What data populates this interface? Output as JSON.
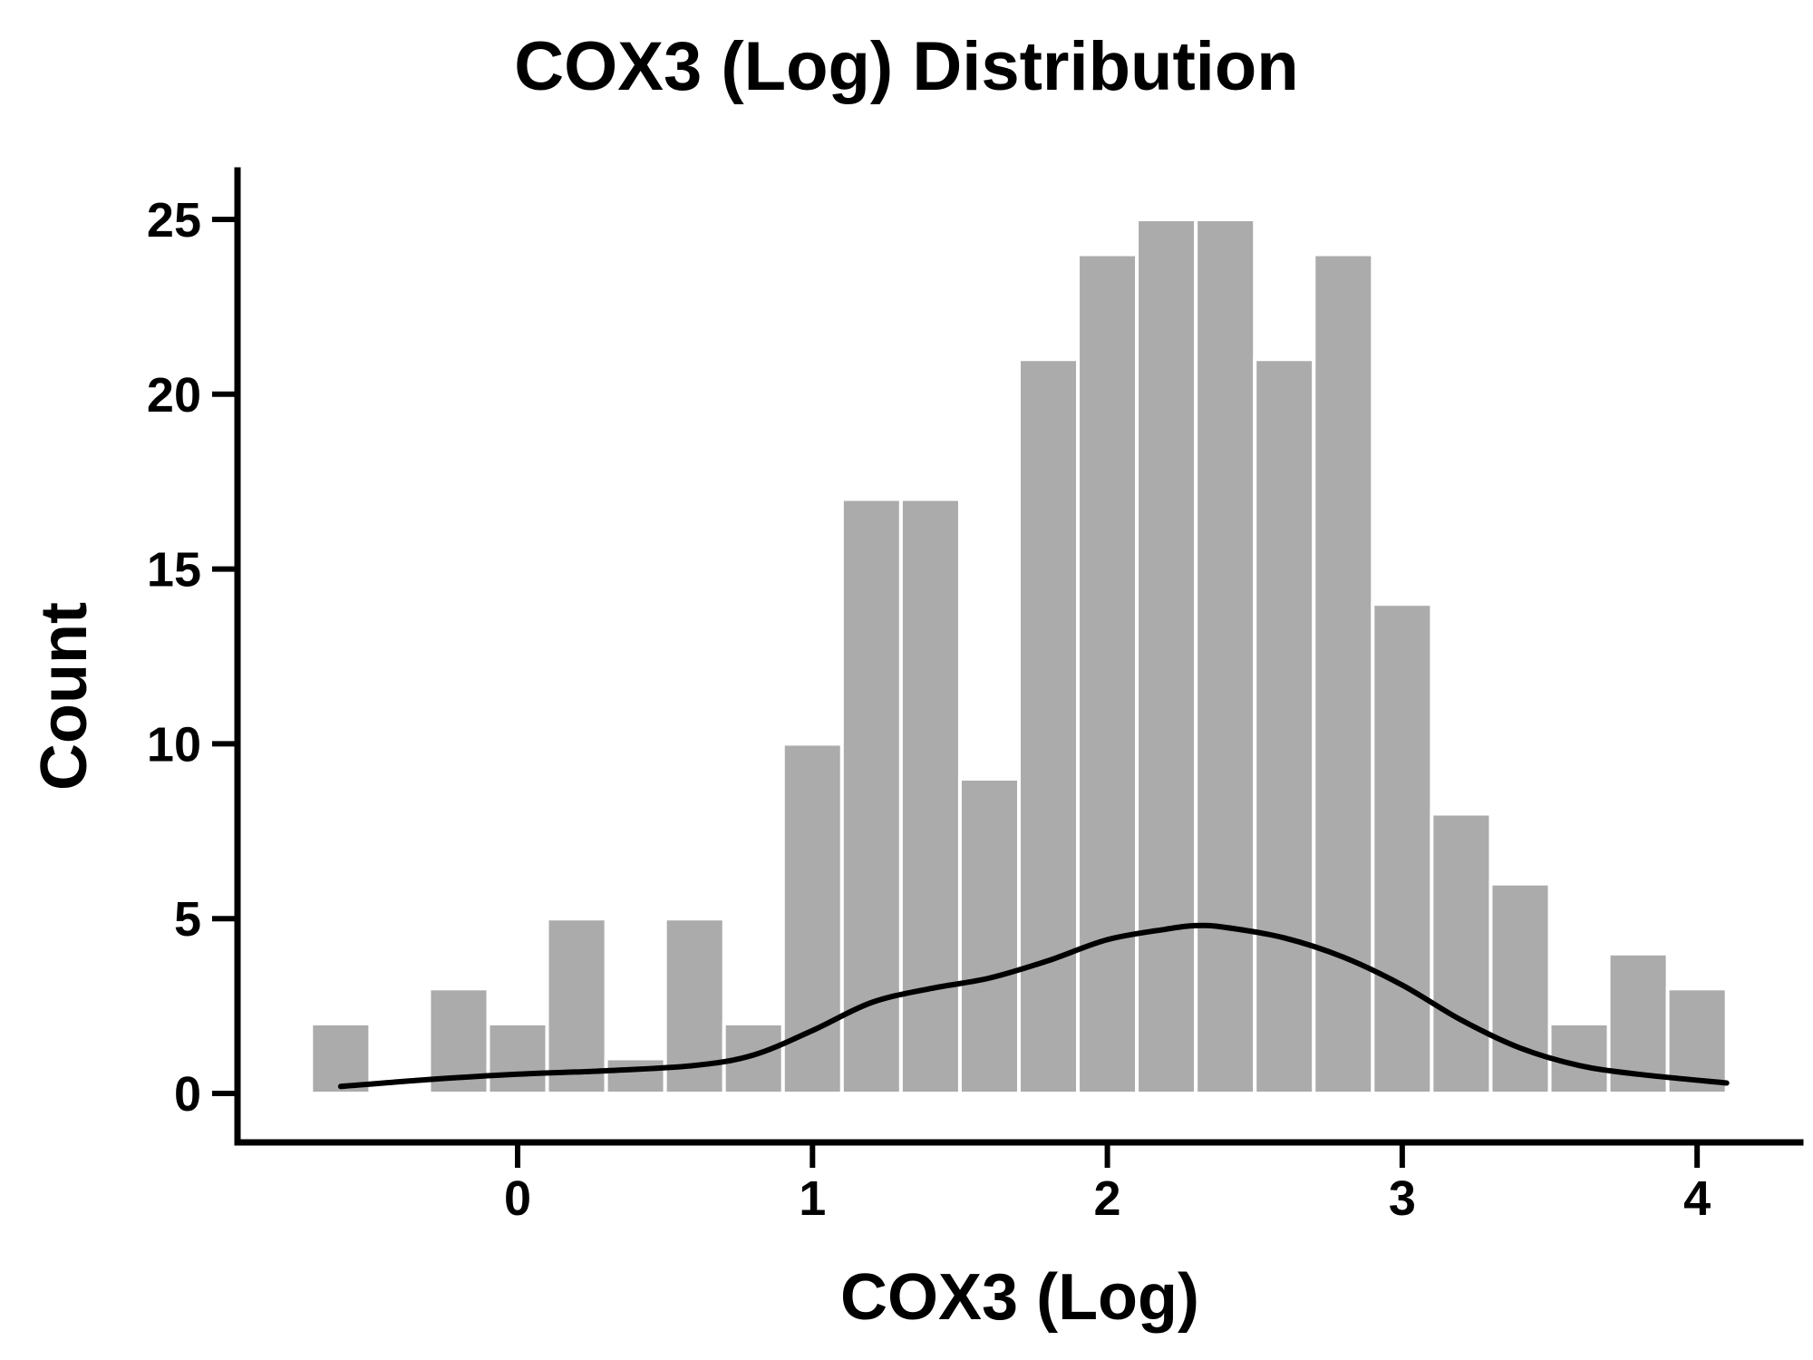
{
  "chart_data": {
    "type": "bar",
    "title": "COX3 (Log) Distribution",
    "xlabel": "COX3 (Log)",
    "ylabel": "Count",
    "xlim": [
      -0.95,
      4.35
    ],
    "ylim": [
      -1.4,
      26.4
    ],
    "x_ticks": [
      0,
      1,
      2,
      3,
      4
    ],
    "y_ticks": [
      0,
      5,
      10,
      15,
      20,
      25
    ],
    "bins": [
      {
        "start": -0.7,
        "end": -0.5,
        "count": 2
      },
      {
        "start": -0.5,
        "end": -0.3,
        "count": 0
      },
      {
        "start": -0.3,
        "end": -0.1,
        "count": 3
      },
      {
        "start": -0.1,
        "end": 0.1,
        "count": 2
      },
      {
        "start": 0.1,
        "end": 0.3,
        "count": 5
      },
      {
        "start": 0.3,
        "end": 0.5,
        "count": 1
      },
      {
        "start": 0.5,
        "end": 0.7,
        "count": 5
      },
      {
        "start": 0.7,
        "end": 0.9,
        "count": 2
      },
      {
        "start": 0.9,
        "end": 1.1,
        "count": 10
      },
      {
        "start": 1.1,
        "end": 1.3,
        "count": 17
      },
      {
        "start": 1.3,
        "end": 1.5,
        "count": 17
      },
      {
        "start": 1.5,
        "end": 1.7,
        "count": 9
      },
      {
        "start": 1.7,
        "end": 1.9,
        "count": 21
      },
      {
        "start": 1.9,
        "end": 2.1,
        "count": 24
      },
      {
        "start": 2.1,
        "end": 2.3,
        "count": 25
      },
      {
        "start": 2.3,
        "end": 2.5,
        "count": 25
      },
      {
        "start": 2.5,
        "end": 2.7,
        "count": 21
      },
      {
        "start": 2.7,
        "end": 2.9,
        "count": 24
      },
      {
        "start": 2.9,
        "end": 3.1,
        "count": 14
      },
      {
        "start": 3.1,
        "end": 3.3,
        "count": 8
      },
      {
        "start": 3.3,
        "end": 3.5,
        "count": 6
      },
      {
        "start": 3.5,
        "end": 3.7,
        "count": 2
      },
      {
        "start": 3.7,
        "end": 3.9,
        "count": 4
      },
      {
        "start": 3.9,
        "end": 4.1,
        "count": 3
      }
    ],
    "density_curve": {
      "x": [
        -0.6,
        -0.3,
        0.0,
        0.3,
        0.6,
        0.8,
        1.0,
        1.2,
        1.4,
        1.6,
        1.8,
        2.0,
        2.2,
        2.3,
        2.4,
        2.6,
        2.8,
        3.0,
        3.2,
        3.4,
        3.6,
        3.8,
        4.1
      ],
      "y": [
        0.2,
        0.4,
        0.55,
        0.65,
        0.8,
        1.1,
        1.8,
        2.6,
        3.0,
        3.3,
        3.8,
        4.4,
        4.7,
        4.8,
        4.75,
        4.45,
        3.9,
        3.1,
        2.1,
        1.3,
        0.8,
        0.55,
        0.3
      ]
    },
    "bar_color": "#ababab",
    "bar_edge_color": "#ffffff",
    "line_color": "#000000",
    "axis_color": "#000000",
    "grid": false,
    "legend": "none"
  }
}
